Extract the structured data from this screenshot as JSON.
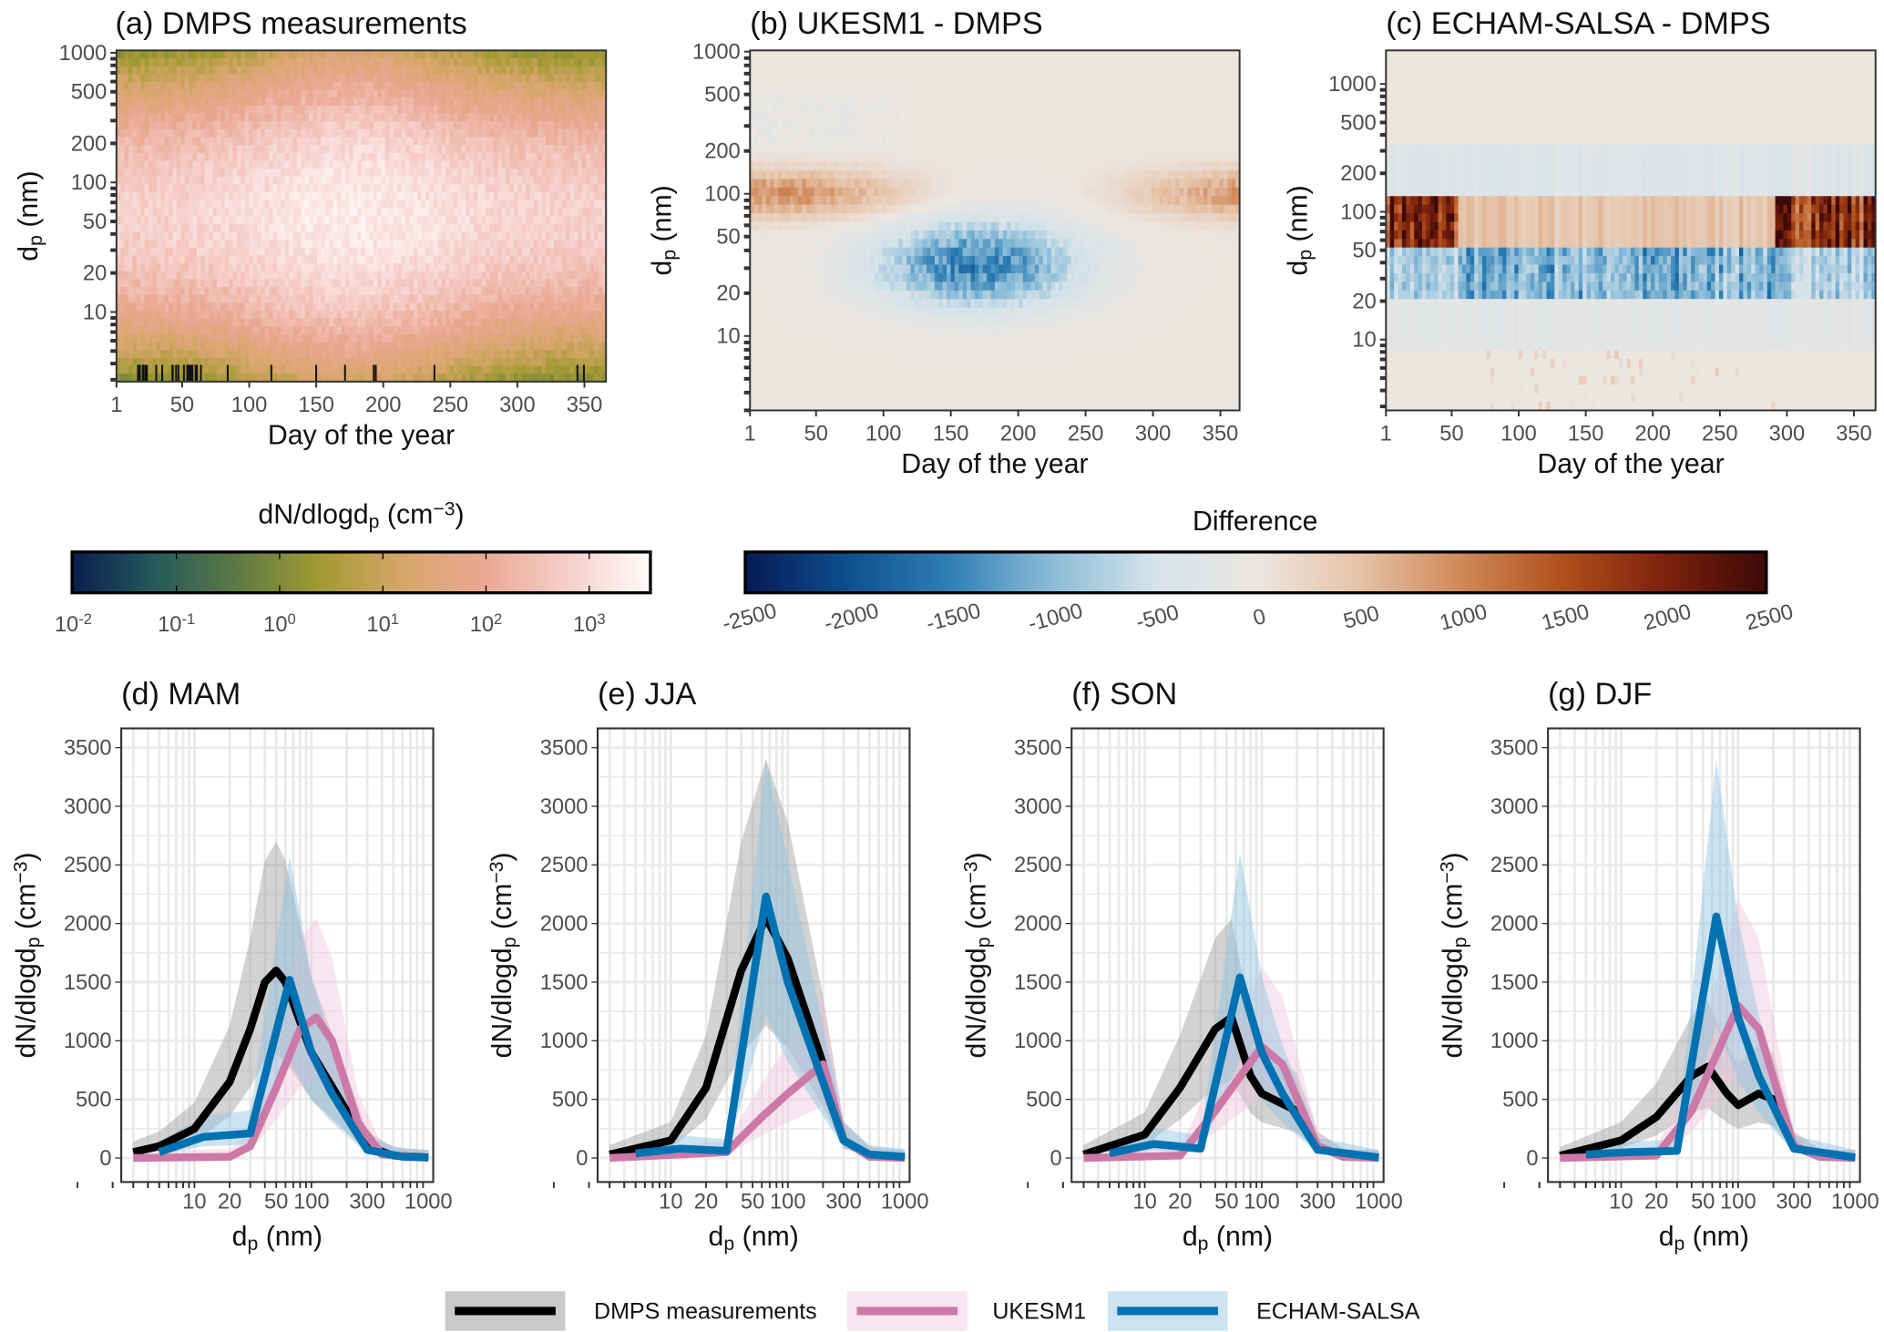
{
  "colors": {
    "dmps": "#000000",
    "ukesm1": "#cc79a7",
    "echam": "#0072b2",
    "dmps_band": "#9e9e9e",
    "ukesm1_band": "#f0c6dc",
    "echam_band": "#8fc3e0"
  },
  "top_panels": [
    {
      "title": "(a) DMPS measurements",
      "ylabel": [
        {
          "t": "d"
        },
        {
          "t": "p",
          "s": "sub"
        },
        {
          "t": " (nm)"
        }
      ],
      "xlabel": "Day of the year"
    },
    {
      "title": "(b) UKESM1 - DMPS",
      "ylabel": [
        {
          "t": "d"
        },
        {
          "t": "p",
          "s": "sub"
        },
        {
          "t": " (nm)"
        }
      ],
      "xlabel": "Day of the year"
    },
    {
      "title": "(c) ECHAM-SALSA - DMPS",
      "ylabel": [
        {
          "t": "d"
        },
        {
          "t": "p",
          "s": "sub"
        },
        {
          "t": " (nm)"
        }
      ],
      "xlabel": "Day of the year"
    }
  ],
  "top_x_ticks": [
    1,
    50,
    100,
    150,
    200,
    250,
    300,
    350
  ],
  "top_y_ticks": [
    1000,
    500,
    200,
    100,
    50,
    20,
    10
  ],
  "colorbar_abs": {
    "title": [
      {
        "t": "dN/dlogd"
      },
      {
        "t": "p",
        "s": "sub"
      },
      {
        "t": " (cm"
      },
      {
        "t": "−3",
        "s": "sup"
      },
      {
        "t": ")"
      }
    ],
    "labels": [
      {
        "b": "10",
        "e": "-2"
      },
      {
        "b": "10",
        "e": "-1"
      },
      {
        "b": "10",
        "e": "0"
      },
      {
        "b": "10",
        "e": "1"
      },
      {
        "b": "10",
        "e": "2"
      },
      {
        "b": "10",
        "e": "3"
      }
    ],
    "stops": [
      "#0b1d4e",
      "#245a5c",
      "#5d7a44",
      "#a29a32",
      "#d7a66a",
      "#eaa893",
      "#f6cfca",
      "#fffafa"
    ]
  },
  "colorbar_diff": {
    "title": "Difference",
    "labels": [
      "-2500",
      "-2000",
      "-1500",
      "-1000",
      "-500",
      "0",
      "500",
      "1000",
      "1500",
      "2000",
      "2500"
    ],
    "stops": [
      "#061a55",
      "#0d4f8e",
      "#2f7fb5",
      "#8bbcd8",
      "#d5e3ea",
      "#ece6e1",
      "#e6c3a8",
      "#d0895a",
      "#b0501c",
      "#7d220c",
      "#3d0808"
    ]
  },
  "chart_data": [
    {
      "type": "heatmap",
      "title": "(a) DMPS measurements",
      "xlabel": "Day of the year",
      "ylabel": "dp (nm)",
      "xlim": [
        1,
        365
      ],
      "ylim_log": [
        3,
        1000
      ],
      "zscale": "log",
      "zlim": [
        0.01,
        5000
      ],
      "description_of_values": "max ~1e3 cm-3 at 30-150 nm in summer"
    },
    {
      "type": "heatmap",
      "title": "(b) UKESM1 - DMPS",
      "xlabel": "Day of the year",
      "ylabel": "dp (nm)",
      "xlim": [
        1,
        365
      ],
      "ylim_log": [
        2,
        1000
      ],
      "zlim": [
        -2500,
        2500
      ]
    },
    {
      "type": "heatmap",
      "title": "(c) ECHAM-SALSA - DMPS",
      "xlabel": "Day of the year",
      "ylabel": "dp (nm)",
      "xlim": [
        1,
        365
      ],
      "ylim_log": [
        2,
        1800
      ],
      "zlim": [
        -2500,
        2500
      ]
    },
    {
      "type": "line",
      "title": "(d) MAM",
      "xlabel": "dp (nm)",
      "ylabel": "dN/dlogdp (cm-3)",
      "xscale": "log",
      "ylim": [
        -200,
        3650
      ],
      "x_ticks": [
        10,
        20,
        50,
        100,
        300,
        1000
      ],
      "y_ticks": [
        0,
        500,
        1000,
        1500,
        2000,
        2500,
        3000,
        3500
      ],
      "series": [
        {
          "name": "DMPS measurements",
          "x": [
            3,
            5,
            10,
            20,
            30,
            40,
            50,
            60,
            100,
            200,
            300,
            500,
            1000
          ],
          "y": [
            50,
            100,
            250,
            650,
            1100,
            1500,
            1600,
            1500,
            900,
            400,
            100,
            20,
            5
          ]
        },
        {
          "name": "UKESM1",
          "x": [
            3,
            20,
            30,
            50,
            80,
            110,
            150,
            250,
            400,
            1000
          ],
          "y": [
            0,
            10,
            100,
            600,
            1100,
            1200,
            1000,
            300,
            30,
            0
          ]
        },
        {
          "name": "ECHAM-SALSA",
          "x": [
            5,
            12,
            30,
            65,
            100,
            150,
            300,
            600,
            1000
          ],
          "y": [
            50,
            180,
            210,
            1520,
            900,
            550,
            70,
            10,
            5
          ]
        }
      ]
    },
    {
      "type": "line",
      "title": "(e) JJA",
      "xlabel": "dp (nm)",
      "ylabel": "dN/dlogdp (cm-3)",
      "xscale": "log",
      "ylim": [
        -200,
        3650
      ],
      "x_ticks": [
        10,
        20,
        50,
        100,
        300,
        1000
      ],
      "y_ticks": [
        0,
        500,
        1000,
        1500,
        2000,
        2500,
        3000,
        3500
      ],
      "series": [
        {
          "name": "DMPS measurements",
          "x": [
            3,
            10,
            20,
            40,
            65,
            100,
            200,
            300,
            500,
            1000
          ],
          "y": [
            30,
            150,
            600,
            1600,
            2050,
            1700,
            800,
            150,
            20,
            5
          ]
        },
        {
          "name": "UKESM1",
          "x": [
            3,
            30,
            60,
            100,
            200,
            300,
            500,
            1000
          ],
          "y": [
            0,
            50,
            350,
            550,
            800,
            150,
            10,
            0
          ]
        },
        {
          "name": "ECHAM-SALSA",
          "x": [
            5,
            12,
            30,
            65,
            100,
            300,
            500,
            1000
          ],
          "y": [
            40,
            80,
            60,
            2230,
            1500,
            150,
            30,
            10
          ]
        }
      ]
    },
    {
      "type": "line",
      "title": "(f) SON",
      "xlabel": "dp (nm)",
      "ylabel": "dN/dlogdp (cm-3)",
      "xscale": "log",
      "ylim": [
        -200,
        3650
      ],
      "x_ticks": [
        10,
        20,
        50,
        100,
        300,
        1000
      ],
      "y_ticks": [
        0,
        500,
        1000,
        1500,
        2000,
        2500,
        3000,
        3500
      ],
      "series": [
        {
          "name": "DMPS measurements",
          "x": [
            3,
            10,
            20,
            40,
            55,
            80,
            100,
            200,
            300,
            500,
            1000
          ],
          "y": [
            30,
            200,
            600,
            1100,
            1200,
            700,
            550,
            400,
            100,
            10,
            5
          ]
        },
        {
          "name": "UKESM1",
          "x": [
            3,
            20,
            40,
            100,
            150,
            300,
            500,
            1000
          ],
          "y": [
            0,
            20,
            400,
            950,
            800,
            100,
            10,
            0
          ]
        },
        {
          "name": "ECHAM-SALSA",
          "x": [
            5,
            12,
            30,
            65,
            100,
            150,
            300,
            1000
          ],
          "y": [
            40,
            120,
            80,
            1540,
            900,
            550,
            70,
            5
          ]
        }
      ]
    },
    {
      "type": "line",
      "title": "(g) DJF",
      "xlabel": "dp (nm)",
      "ylabel": "dN/dlogdp (cm-3)",
      "xscale": "log",
      "ylim": [
        -200,
        3650
      ],
      "x_ticks": [
        10,
        20,
        50,
        100,
        300,
        1000
      ],
      "y_ticks": [
        0,
        500,
        1000,
        1500,
        2000,
        2500,
        3000,
        3500
      ],
      "series": [
        {
          "name": "DMPS measurements",
          "x": [
            3,
            10,
            20,
            40,
            55,
            80,
            100,
            150,
            200,
            300,
            500,
            1000
          ],
          "y": [
            20,
            150,
            350,
            700,
            780,
            550,
            450,
            550,
            500,
            100,
            10,
            5
          ]
        },
        {
          "name": "UKESM1",
          "x": [
            3,
            20,
            40,
            100,
            150,
            300,
            500,
            1000
          ],
          "y": [
            0,
            20,
            400,
            1300,
            1100,
            100,
            10,
            0
          ]
        },
        {
          "name": "ECHAM-SALSA",
          "x": [
            5,
            12,
            30,
            65,
            100,
            150,
            300,
            1000
          ],
          "y": [
            30,
            50,
            60,
            2060,
            1200,
            700,
            80,
            5
          ]
        }
      ]
    }
  ],
  "bottom_ylabel": [
    {
      "t": "dN/dlogd"
    },
    {
      "t": "p",
      "s": "sub"
    },
    {
      "t": " (cm"
    },
    {
      "t": "−3",
      "s": "sup"
    },
    {
      "t": ")"
    }
  ],
  "bottom_xlabel": [
    {
      "t": "d"
    },
    {
      "t": "p",
      "s": "sub"
    },
    {
      "t": " (nm)"
    }
  ],
  "legend": [
    {
      "label": "DMPS measurements",
      "key": "dmps"
    },
    {
      "label": "UKESM1",
      "key": "ukesm1"
    },
    {
      "label": "ECHAM-SALSA",
      "key": "echam"
    }
  ]
}
